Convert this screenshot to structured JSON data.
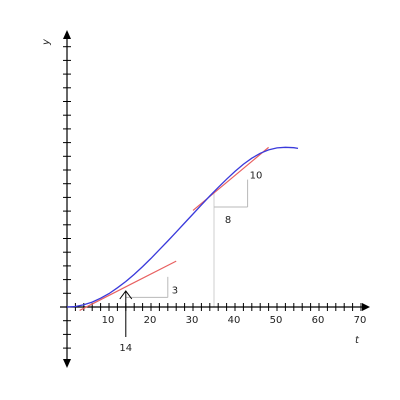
{
  "chart_data": {
    "type": "line",
    "title": "",
    "xlabel": "t",
    "ylabel": "y",
    "xlim": [
      0,
      70
    ],
    "ylim": [
      -4,
      17
    ],
    "x_ticks": [
      10,
      20,
      30,
      40,
      50,
      60,
      70
    ],
    "x_tick_labels": [
      "10",
      "20",
      "30",
      "40",
      "50",
      "60",
      "70"
    ],
    "colors": {
      "curve": "#3a3adb",
      "tangent": "#e86060",
      "triangle": "#b8b8b8",
      "axis": "#000000"
    },
    "curve": {
      "x": [
        0,
        2,
        4,
        6,
        8,
        10,
        12,
        14,
        16,
        18,
        20,
        22,
        24,
        26,
        28,
        30,
        32,
        34,
        36,
        38,
        40,
        42,
        44,
        46,
        48,
        50,
        52,
        54,
        55
      ],
      "y": [
        0,
        0.04,
        0.16,
        0.36,
        0.64,
        0.98,
        1.4,
        1.86,
        2.38,
        2.95,
        3.55,
        4.18,
        4.82,
        5.47,
        6.13,
        6.79,
        7.45,
        8.1,
        8.73,
        9.33,
        9.9,
        10.42,
        10.86,
        11.22,
        11.47,
        11.61,
        11.66,
        11.63,
        11.58
      ]
    },
    "tangents": [
      {
        "x": [
          3,
          26
        ],
        "y": [
          -0.25,
          3.35
        ]
      },
      {
        "x": [
          30,
          48
        ],
        "y": [
          7.05,
          11.65
        ]
      }
    ],
    "slope_triangles": [
      {
        "x0": 14,
        "y0": 0.7,
        "run_x": 24,
        "rise_y": 2.2,
        "label": "3"
      },
      {
        "x0": 35,
        "y0": 7.3,
        "run_x": 43,
        "rise_y": 9.3,
        "label": "10",
        "vert_label": "8"
      }
    ],
    "guide_line": {
      "x": 35,
      "y_from": 0,
      "y_to": 8.3
    },
    "arrow": {
      "x": 14,
      "label": "14"
    }
  }
}
